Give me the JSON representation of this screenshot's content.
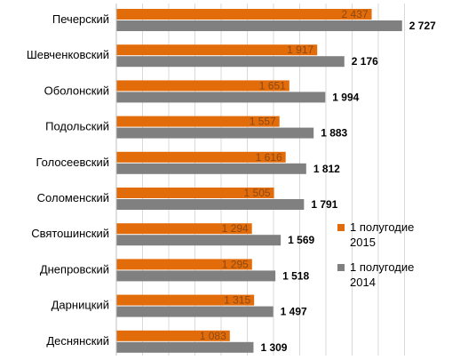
{
  "chart_data": {
    "type": "bar",
    "orientation": "horizontal",
    "categories": [
      "Печерский",
      "Шевченковский",
      "Оболонский",
      "Подольский",
      "Голосеевский",
      "Соломенский",
      "Святошинский",
      "Днепровский",
      "Дарницкий",
      "Деснянский"
    ],
    "series": [
      {
        "name": "1 полугодие 2015",
        "legend_lines": [
          "1 полугодие",
          "2015"
        ],
        "color": "#E36C0A",
        "values": [
          2437,
          1917,
          1651,
          1557,
          1616,
          1505,
          1294,
          1295,
          1315,
          1083
        ],
        "labels": [
          "2 437",
          "1 917",
          "1 651",
          "1 557",
          "1 616",
          "1 505",
          "1 294",
          "1 295",
          "1 315",
          "1 083"
        ]
      },
      {
        "name": "1 полугодие 2014",
        "legend_lines": [
          "1 полугодие",
          "2014"
        ],
        "color": "#808080",
        "values": [
          2727,
          2176,
          1994,
          1883,
          1812,
          1791,
          1569,
          1518,
          1497,
          1309
        ],
        "labels": [
          "2 727",
          "2 176",
          "1 994",
          "1 883",
          "1 812",
          "1 791",
          "1 569",
          "1 518",
          "1 497",
          "1 309"
        ]
      }
    ],
    "xlim": [
      0,
      2950
    ],
    "grid": true,
    "legend_position": "right"
  }
}
